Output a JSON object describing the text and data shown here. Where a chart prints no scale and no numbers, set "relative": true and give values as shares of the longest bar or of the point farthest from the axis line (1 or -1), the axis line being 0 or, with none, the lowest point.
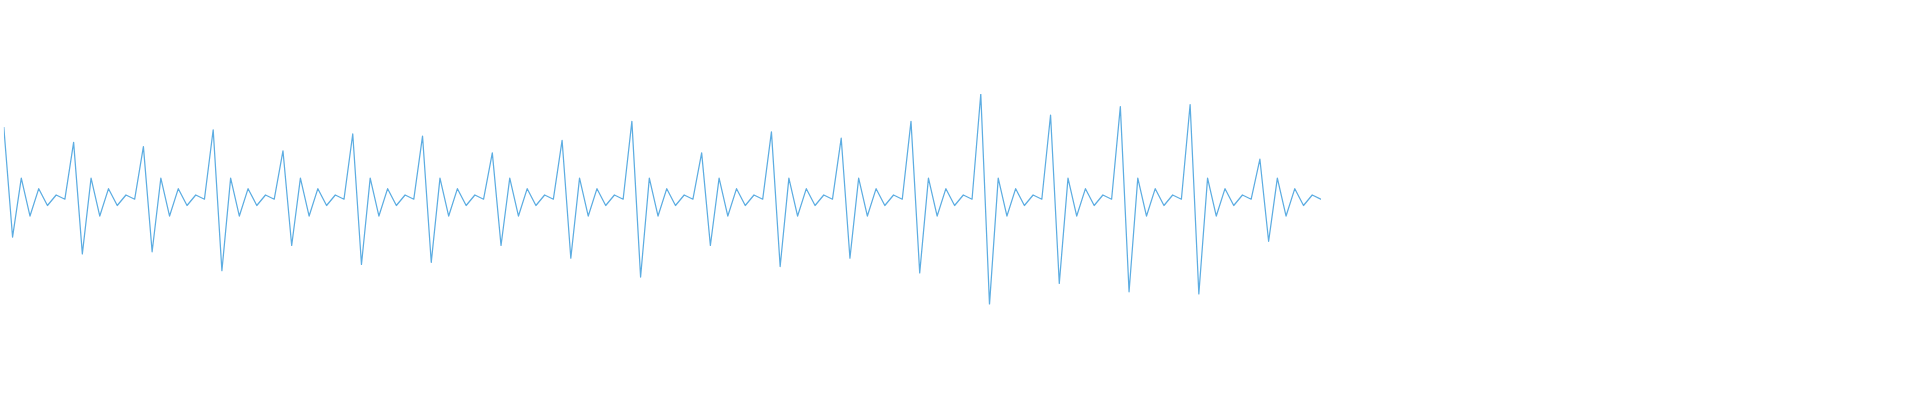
{
  "chart_data": {
    "type": "line",
    "relative": true,
    "categories": [
      null,
      null,
      null,
      null,
      null,
      null,
      null,
      null,
      null,
      null,
      null,
      null,
      null,
      null,
      null,
      null,
      null,
      null,
      null,
      null,
      null,
      null,
      null,
      null,
      null,
      null,
      null,
      null,
      null,
      null,
      null,
      null,
      null,
      null,
      null,
      null,
      null,
      null,
      null,
      null,
      null,
      null,
      null,
      null,
      null,
      null,
      null,
      null,
      null,
      null,
      null,
      null,
      null,
      null,
      null,
      null,
      null,
      null,
      null,
      null,
      null,
      null,
      null,
      null,
      null,
      null,
      null,
      null,
      null,
      null,
      null,
      null,
      null,
      null,
      null,
      null,
      null,
      null,
      null,
      null,
      null,
      null,
      null,
      null,
      null,
      null,
      null,
      null,
      null,
      null,
      null,
      null,
      null,
      null,
      null,
      null,
      null,
      null,
      null,
      null,
      null,
      null,
      null,
      null,
      null,
      null,
      null,
      null,
      null,
      null,
      null,
      null,
      null,
      null,
      null,
      null,
      null,
      null,
      null,
      null,
      null,
      null,
      null,
      null,
      null,
      null,
      null,
      null,
      null,
      null,
      null,
      null,
      null,
      null,
      null,
      null,
      null,
      null,
      null,
      null,
      null,
      null,
      null,
      null,
      null,
      null,
      null,
      null,
      null,
      null,
      null,
      null
    ],
    "series": [
      {
        "color": "#5dade2",
        "values": [
          0.84,
          0.32,
          0.6,
          0.42,
          0.55,
          0.47,
          0.52,
          0.5,
          0.77,
          0.24,
          0.6,
          0.42,
          0.55,
          0.47,
          0.52,
          0.5,
          0.75,
          0.25,
          0.6,
          0.42,
          0.55,
          0.47,
          0.52,
          0.5,
          0.83,
          0.16,
          0.6,
          0.42,
          0.55,
          0.47,
          0.52,
          0.5,
          0.73,
          0.28,
          0.6,
          0.42,
          0.55,
          0.47,
          0.52,
          0.5,
          0.81,
          0.19,
          0.6,
          0.42,
          0.55,
          0.47,
          0.52,
          0.5,
          0.8,
          0.2,
          0.6,
          0.42,
          0.55,
          0.47,
          0.52,
          0.5,
          0.72,
          0.28,
          0.6,
          0.42,
          0.55,
          0.47,
          0.52,
          0.5,
          0.78,
          0.22,
          0.6,
          0.42,
          0.55,
          0.47,
          0.52,
          0.5,
          0.87,
          0.13,
          0.6,
          0.42,
          0.55,
          0.47,
          0.52,
          0.5,
          0.72,
          0.28,
          0.6,
          0.42,
          0.55,
          0.47,
          0.52,
          0.5,
          0.82,
          0.18,
          0.6,
          0.42,
          0.55,
          0.47,
          0.52,
          0.5,
          0.79,
          0.22,
          0.6,
          0.42,
          0.55,
          0.47,
          0.52,
          0.5,
          0.87,
          0.15,
          0.6,
          0.42,
          0.55,
          0.47,
          0.52,
          0.5,
          1.0,
          0.0,
          0.6,
          0.42,
          0.55,
          0.47,
          0.52,
          0.5,
          0.9,
          0.1,
          0.6,
          0.42,
          0.55,
          0.47,
          0.52,
          0.5,
          0.94,
          0.06,
          0.6,
          0.42,
          0.55,
          0.47,
          0.52,
          0.5,
          0.95,
          0.05,
          0.6,
          0.42,
          0.55,
          0.47,
          0.52,
          0.5,
          0.69,
          0.3,
          0.6,
          0.42,
          0.55,
          0.47,
          0.52,
          0.5
        ]
      }
    ]
  }
}
